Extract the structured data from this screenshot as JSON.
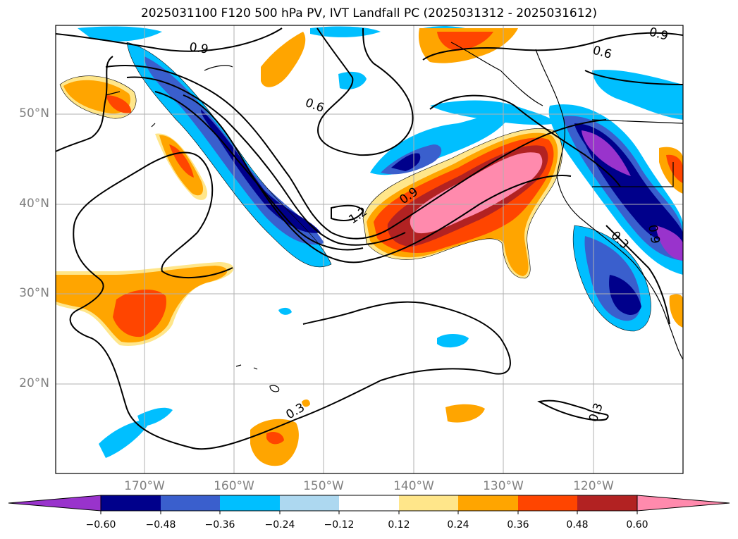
{
  "title": "2025031100 F120 500 hPa PV, IVT Landfall PC (2025031312 - 2025031612)",
  "map": {
    "lat_labels": [
      "50°N",
      "40°N",
      "30°N",
      "20°N"
    ],
    "lon_labels": [
      "170°W",
      "160°W",
      "150°W",
      "140°W",
      "130°W",
      "120°W"
    ],
    "contour_labels": [
      "0.9",
      "0.6",
      "0.9",
      "0.6",
      "0.9",
      "1.2",
      "0.3",
      "0.3",
      "0.3",
      "0.9"
    ],
    "grid": "on"
  },
  "colorbar": {
    "ticks": [
      "−0.60",
      "−0.48",
      "−0.36",
      "−0.24",
      "−0.12",
      "0.12",
      "0.24",
      "0.36",
      "0.48",
      "0.60"
    ],
    "colors": [
      "#9933cc",
      "#00008b",
      "#3a5fcd",
      "#00bfff",
      "#add8f0",
      "#ffffff",
      "#ffe68a",
      "#ffa500",
      "#ff4500",
      "#b22222",
      "#ff8aad"
    ]
  }
}
